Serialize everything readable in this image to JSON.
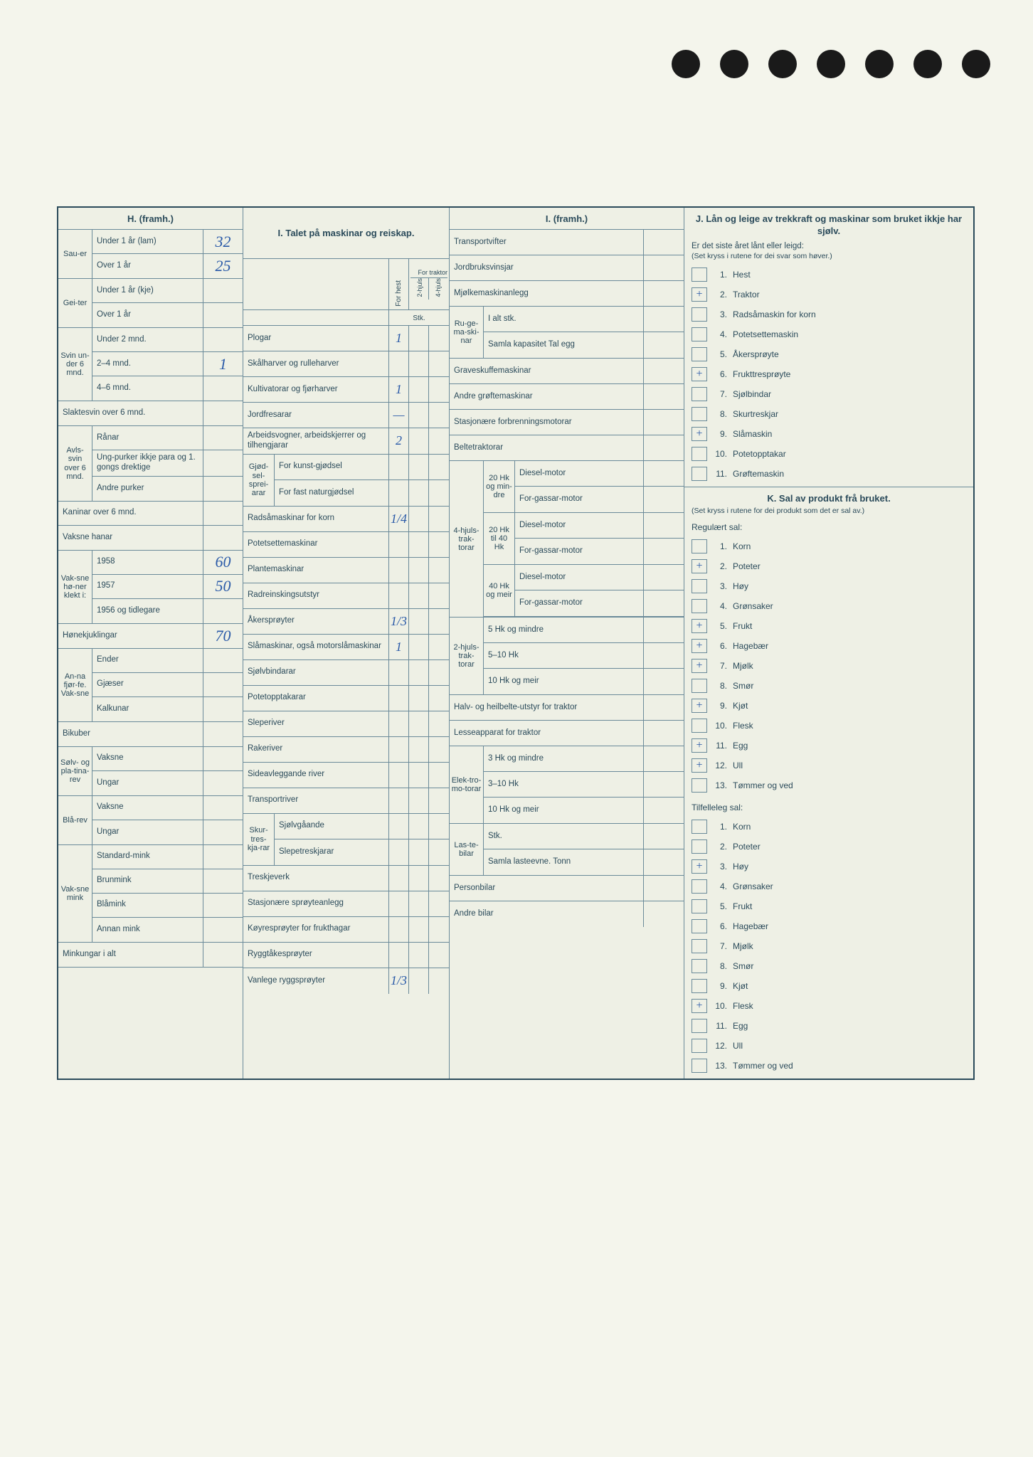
{
  "colors": {
    "page_bg": "#eef0e5",
    "body_bg": "#f4f5ec",
    "border": "#2a4a5a",
    "grid": "#6a8a99",
    "text": "#2a4a5a",
    "handwriting": "#2a5aa8",
    "hole": "#1a1a1a"
  },
  "punch_hole_count": 7,
  "H": {
    "header": "H. (framh.)",
    "groups": [
      {
        "side": "Sau-er",
        "rows": [
          {
            "label": "Under 1 år (lam)",
            "value": "32"
          },
          {
            "label": "Over 1 år",
            "value": "25"
          }
        ]
      },
      {
        "side": "Gei-ter",
        "rows": [
          {
            "label": "Under 1 år (kje)",
            "value": ""
          },
          {
            "label": "Over 1 år",
            "value": ""
          }
        ]
      },
      {
        "side": "Svin un-der 6 mnd.",
        "rows": [
          {
            "label": "Under 2 mnd.",
            "value": ""
          },
          {
            "label": "2–4 mnd.",
            "value": "1"
          },
          {
            "label": "4–6 mnd.",
            "value": ""
          }
        ]
      },
      {
        "side": "",
        "rows": [
          {
            "label": "Slaktesvin over 6 mnd.",
            "value": ""
          }
        ]
      },
      {
        "side": "Avls-svin over 6 mnd.",
        "rows": [
          {
            "label": "Rånar",
            "value": ""
          },
          {
            "label": "Ung-purker ikkje para og 1. gongs drektige",
            "value": ""
          },
          {
            "label": "Andre purker",
            "value": ""
          }
        ]
      },
      {
        "side": "",
        "rows": [
          {
            "label": "Kaninar over 6 mnd.",
            "value": ""
          },
          {
            "label": "Vaksne hanar",
            "value": ""
          }
        ]
      },
      {
        "side": "Vak-sne hø-ner klekt i:",
        "rows": [
          {
            "label": "1958",
            "value": "60"
          },
          {
            "label": "1957",
            "value": "50"
          },
          {
            "label": "1956 og tidlegare",
            "value": ""
          }
        ]
      },
      {
        "side": "",
        "rows": [
          {
            "label": "Hønekjuklingar",
            "value": "70"
          }
        ]
      },
      {
        "side": "An-na fjør-fe. Vak-sne",
        "rows": [
          {
            "label": "Ender",
            "value": ""
          },
          {
            "label": "Gjæser",
            "value": ""
          },
          {
            "label": "Kalkunar",
            "value": ""
          }
        ]
      },
      {
        "side": "",
        "rows": [
          {
            "label": "Bikuber",
            "value": ""
          }
        ]
      },
      {
        "side": "Sølv- og pla-tina-rev",
        "rows": [
          {
            "label": "Vaksne",
            "value": ""
          },
          {
            "label": "Ungar",
            "value": ""
          }
        ]
      },
      {
        "side": "Blå-rev",
        "rows": [
          {
            "label": "Vaksne",
            "value": ""
          },
          {
            "label": "Ungar",
            "value": ""
          }
        ]
      },
      {
        "side": "Vak-sne mink",
        "rows": [
          {
            "label": "Standard-mink",
            "value": ""
          },
          {
            "label": "Brunmink",
            "value": ""
          },
          {
            "label": "Blåmink",
            "value": ""
          },
          {
            "label": "Annan mink",
            "value": ""
          }
        ]
      },
      {
        "side": "",
        "rows": [
          {
            "label": "Minkungar i alt",
            "value": ""
          }
        ]
      }
    ]
  },
  "I1": {
    "header": "I. Talet på maskinar og reiskap.",
    "value_headers": {
      "forhest": "For hest",
      "fortraktor_top": "For traktor",
      "twohjuls": "2-hjuls",
      "fourhjuls": "4-hjuls"
    },
    "stk_label": "Stk.",
    "rows": [
      {
        "label": "Plogar",
        "v": [
          "1",
          "",
          ""
        ]
      },
      {
        "label": "Skålharver og rulleharver",
        "v": [
          "",
          "",
          ""
        ]
      },
      {
        "label": "Kultivatorar og fjørharver",
        "v": [
          "1",
          "",
          ""
        ]
      },
      {
        "label": "Jordfresarar",
        "v": [
          "—",
          "",
          ""
        ]
      },
      {
        "label": "Arbeidsvogner, arbeidskjerrer og tilhengjarar",
        "v": [
          "2",
          "",
          ""
        ]
      }
    ],
    "gjodsel_side": "Gjød-sel-sprei-arar",
    "gjodsel_rows": [
      {
        "label": "For kunst-gjødsel",
        "v": [
          "",
          "",
          ""
        ]
      },
      {
        "label": "For fast naturgjødsel",
        "v": [
          "",
          "",
          ""
        ]
      }
    ],
    "rows2": [
      {
        "label": "Radsåmaskinar for korn",
        "v": [
          "1/4",
          "",
          ""
        ]
      },
      {
        "label": "Potetsettemaskinar",
        "v": [
          "",
          "",
          ""
        ]
      },
      {
        "label": "Plantemaskinar",
        "v": [
          "",
          "",
          ""
        ]
      },
      {
        "label": "Radreinskingsutstyr",
        "v": [
          "",
          "",
          ""
        ]
      },
      {
        "label": "Åkersprøyter",
        "v": [
          "1/3",
          "",
          ""
        ]
      },
      {
        "label": "Slåmaskinar, også motorslåmaskinar",
        "v": [
          "1",
          "",
          ""
        ]
      },
      {
        "label": "Sjølvbindarar",
        "v": [
          "",
          "",
          ""
        ]
      },
      {
        "label": "Potetopptakarar",
        "v": [
          "",
          "",
          ""
        ]
      },
      {
        "label": "Sleperiver",
        "v": [
          "",
          "",
          ""
        ]
      },
      {
        "label": "Rakeriver",
        "v": [
          "",
          "",
          ""
        ]
      },
      {
        "label": "Sideavleggande river",
        "v": [
          "",
          "",
          ""
        ]
      },
      {
        "label": "Transportriver",
        "v": [
          "",
          "",
          ""
        ]
      }
    ],
    "skurt_side": "Skur-tres-kja-rar",
    "skurt_rows": [
      {
        "label": "Sjølvgåande",
        "v": [
          "",
          "",
          ""
        ]
      },
      {
        "label": "Slepetreskjarar",
        "v": [
          "",
          "",
          ""
        ]
      }
    ],
    "rows3": [
      {
        "label": "Treskjeverk",
        "v": [
          "",
          "",
          ""
        ]
      },
      {
        "label": "Stasjonære sprøyteanlegg",
        "v": [
          "",
          "",
          ""
        ]
      },
      {
        "label": "Køyresprøyter for frukthagar",
        "v": [
          "",
          "",
          ""
        ]
      },
      {
        "label": "Ryggtåkesprøyter",
        "v": [
          "",
          "",
          ""
        ]
      },
      {
        "label": "Vanlege ryggsprøyter",
        "v": [
          "1/3",
          "",
          ""
        ]
      }
    ]
  },
  "I2": {
    "header": "I. (framh.)",
    "top_rows": [
      {
        "label": "Transportvifter"
      },
      {
        "label": "Jordbruksvinsjar"
      },
      {
        "label": "Mjølkemaskinanlegg"
      }
    ],
    "ruge_side": "Ru-ge-ma-ski-nar",
    "ruge_rows": [
      {
        "label": "I alt stk."
      },
      {
        "label": "Samla kapasitet Tal egg"
      }
    ],
    "mid_rows": [
      {
        "label": "Graveskuffemaskinar"
      },
      {
        "label": "Andre grøftemaskinar"
      },
      {
        "label": "Stasjonære forbrenningsmotorar"
      },
      {
        "label": "Beltetraktorar"
      }
    ],
    "fourhjul_side": "4-hjuls-trak-torar",
    "fourhjul_groups": [
      {
        "side": "20 Hk og min-dre",
        "rows": [
          {
            "label": "Diesel-motor"
          },
          {
            "label": "For-gassar-motor"
          }
        ]
      },
      {
        "side": "20 Hk til 40 Hk",
        "rows": [
          {
            "label": "Diesel-motor"
          },
          {
            "label": "For-gassar-motor"
          }
        ]
      },
      {
        "side": "40 Hk og meir",
        "rows": [
          {
            "label": "Diesel-motor"
          },
          {
            "label": "For-gassar-motor"
          }
        ]
      }
    ],
    "twohjul_side": "2-hjuls-trak-torar",
    "twohjul_rows": [
      {
        "label": "5 Hk og mindre"
      },
      {
        "label": "5–10 Hk"
      },
      {
        "label": "10 Hk og meir"
      }
    ],
    "bottom_rows": [
      {
        "label": "Halv- og heilbelte-utstyr for traktor"
      },
      {
        "label": "Lesseapparat for traktor"
      }
    ],
    "elektro_side": "Elek-tro-mo-torar",
    "elektro_rows": [
      {
        "label": "3 Hk og mindre"
      },
      {
        "label": "3–10 Hk"
      },
      {
        "label": "10 Hk og meir"
      }
    ],
    "laste_side": "Las-te-bilar",
    "laste_rows": [
      {
        "label": "Stk."
      },
      {
        "label": "Samla lasteevne. Tonn"
      }
    ],
    "end_rows": [
      {
        "label": "Personbilar"
      },
      {
        "label": "Andre bilar"
      }
    ]
  },
  "J": {
    "title": "J. Lån og leige av trekkraft og maskinar som bruket ikkje har sjølv.",
    "intro": "Er det siste året lånt eller leigd:",
    "note": "(Set kryss i rutene for dei svar som høver.)",
    "items": [
      {
        "n": "1.",
        "label": "Hest",
        "mark": ""
      },
      {
        "n": "2.",
        "label": "Traktor",
        "mark": "+"
      },
      {
        "n": "3.",
        "label": "Radsåmaskin for korn",
        "mark": ""
      },
      {
        "n": "4.",
        "label": "Potetsettemaskin",
        "mark": ""
      },
      {
        "n": "5.",
        "label": "Åkersprøyte",
        "mark": ""
      },
      {
        "n": "6.",
        "label": "Frukttresprøyte",
        "mark": "+"
      },
      {
        "n": "7.",
        "label": "Sjølbindar",
        "mark": ""
      },
      {
        "n": "8.",
        "label": "Skurtreskjar",
        "mark": ""
      },
      {
        "n": "9.",
        "label": "Slåmaskin",
        "mark": "+"
      },
      {
        "n": "10.",
        "label": "Potetopptakar",
        "mark": ""
      },
      {
        "n": "11.",
        "label": "Grøftemaskin",
        "mark": ""
      }
    ]
  },
  "K": {
    "title": "K. Sal av produkt frå bruket.",
    "note": "(Set kryss i rutene for dei produkt som det er sal av.)",
    "regular_header": "Regulært sal:",
    "regular": [
      {
        "n": "1.",
        "label": "Korn",
        "mark": ""
      },
      {
        "n": "2.",
        "label": "Poteter",
        "mark": "+"
      },
      {
        "n": "3.",
        "label": "Høy",
        "mark": ""
      },
      {
        "n": "4.",
        "label": "Grønsaker",
        "mark": ""
      },
      {
        "n": "5.",
        "label": "Frukt",
        "mark": "+"
      },
      {
        "n": "6.",
        "label": "Hagebær",
        "mark": "+"
      },
      {
        "n": "7.",
        "label": "Mjølk",
        "mark": "+"
      },
      {
        "n": "8.",
        "label": "Smør",
        "mark": ""
      },
      {
        "n": "9.",
        "label": "Kjøt",
        "mark": "+"
      },
      {
        "n": "10.",
        "label": "Flesk",
        "mark": ""
      },
      {
        "n": "11.",
        "label": "Egg",
        "mark": "+"
      },
      {
        "n": "12.",
        "label": "Ull",
        "mark": "+"
      },
      {
        "n": "13.",
        "label": "Tømmer og ved",
        "mark": ""
      }
    ],
    "occasional_header": "Tilfelleleg sal:",
    "occasional": [
      {
        "n": "1.",
        "label": "Korn",
        "mark": ""
      },
      {
        "n": "2.",
        "label": "Poteter",
        "mark": ""
      },
      {
        "n": "3.",
        "label": "Høy",
        "mark": "+"
      },
      {
        "n": "4.",
        "label": "Grønsaker",
        "mark": ""
      },
      {
        "n": "5.",
        "label": "Frukt",
        "mark": ""
      },
      {
        "n": "6.",
        "label": "Hagebær",
        "mark": ""
      },
      {
        "n": "7.",
        "label": "Mjølk",
        "mark": ""
      },
      {
        "n": "8.",
        "label": "Smør",
        "mark": ""
      },
      {
        "n": "9.",
        "label": "Kjøt",
        "mark": ""
      },
      {
        "n": "10.",
        "label": "Flesk",
        "mark": "+"
      },
      {
        "n": "11.",
        "label": "Egg",
        "mark": ""
      },
      {
        "n": "12.",
        "label": "Ull",
        "mark": ""
      },
      {
        "n": "13.",
        "label": "Tømmer og ved",
        "mark": ""
      }
    ]
  }
}
